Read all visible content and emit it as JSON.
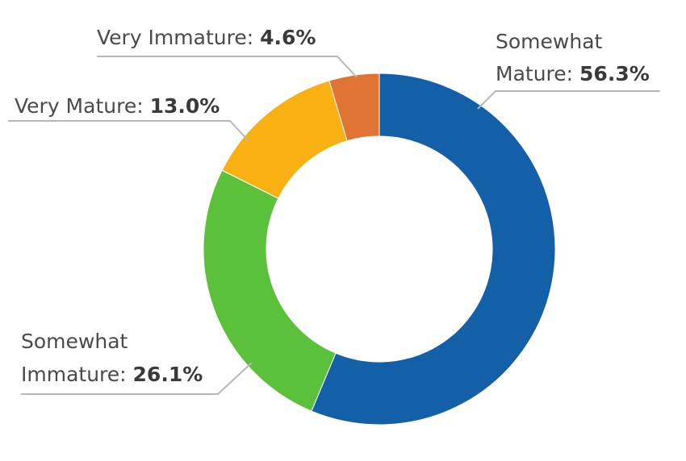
{
  "chart_data": {
    "type": "pie",
    "donut": true,
    "title": "",
    "categories": [
      "Somewhat Mature",
      "Somewhat Immature",
      "Very Mature",
      "Very Immature"
    ],
    "values": [
      56.3,
      26.1,
      13.0,
      4.6
    ],
    "unit": "%",
    "colors": [
      "#1460a8",
      "#5cc13a",
      "#f8b012",
      "#e07435"
    ],
    "labels": [
      {
        "lines": [
          "Somewhat",
          "Mature: "
        ],
        "value_text": "56.3%"
      },
      {
        "lines": [
          "Somewhat",
          "Immature: "
        ],
        "value_text": "26.1%"
      },
      {
        "lines": [
          "Very Mature: "
        ],
        "value_text": "13.0%"
      },
      {
        "lines": [
          "Very Immature: "
        ],
        "value_text": "4.6%"
      }
    ],
    "legend": "none",
    "start_angle": "12 o'clock, clockwise"
  }
}
